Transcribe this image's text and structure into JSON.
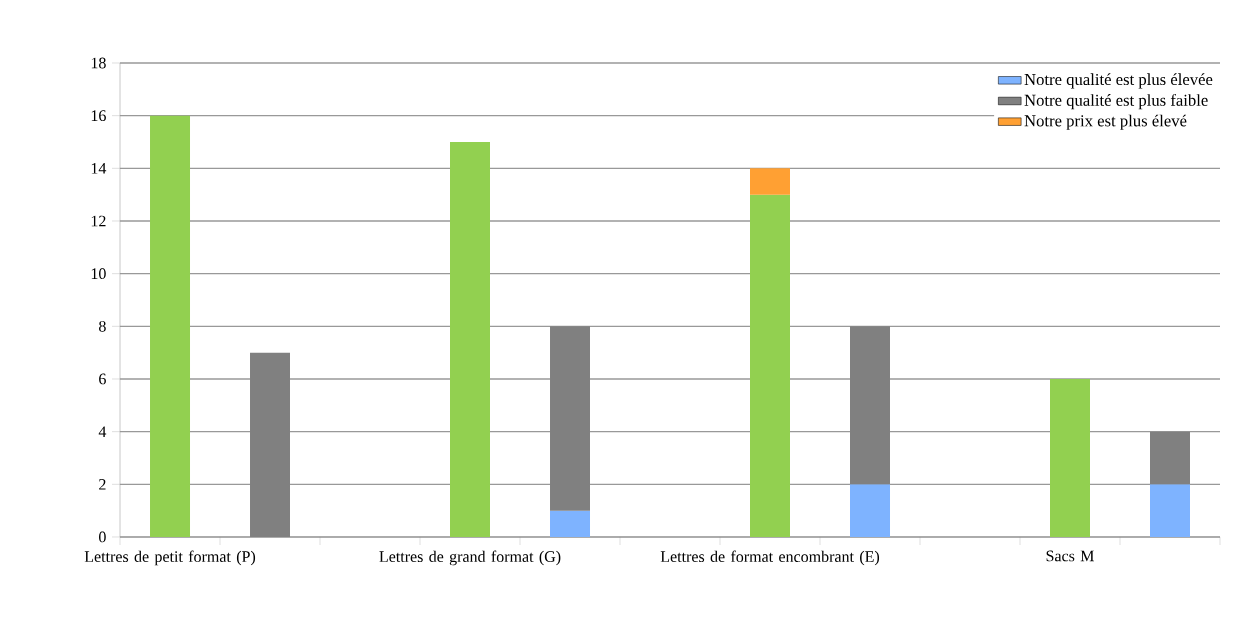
{
  "chart_data": {
    "type": "bar",
    "stacked": true,
    "categories": [
      "Lettres de petit format (P)",
      null,
      null,
      "Lettres de grand format (G)",
      null,
      null,
      "Lettres de format encombrant (E)",
      null,
      null,
      "Sacs M",
      null
    ],
    "series": [
      {
        "color": "#92d050",
        "values": [
          16,
          null,
          null,
          15,
          null,
          null,
          13,
          null,
          null,
          6,
          null
        ]
      },
      {
        "name": "Notre qualité est plus élevée",
        "color": "#7eb3ff",
        "values": [
          null,
          null,
          null,
          null,
          1,
          null,
          null,
          2,
          null,
          null,
          2
        ]
      },
      {
        "name": "Notre qualité est plus faible",
        "color": "#808080",
        "values": [
          null,
          7,
          null,
          null,
          7,
          null,
          null,
          6,
          null,
          null,
          2
        ]
      },
      {
        "name": "Notre prix est plus élevé",
        "color": "#ffa033",
        "values": [
          null,
          null,
          null,
          null,
          null,
          null,
          1,
          null,
          null,
          null,
          null
        ]
      }
    ],
    "ylim": [
      0,
      18
    ],
    "yticks": [
      0,
      2,
      4,
      6,
      8,
      10,
      12,
      14,
      16,
      18
    ],
    "grid": "y",
    "legend": "top right"
  }
}
